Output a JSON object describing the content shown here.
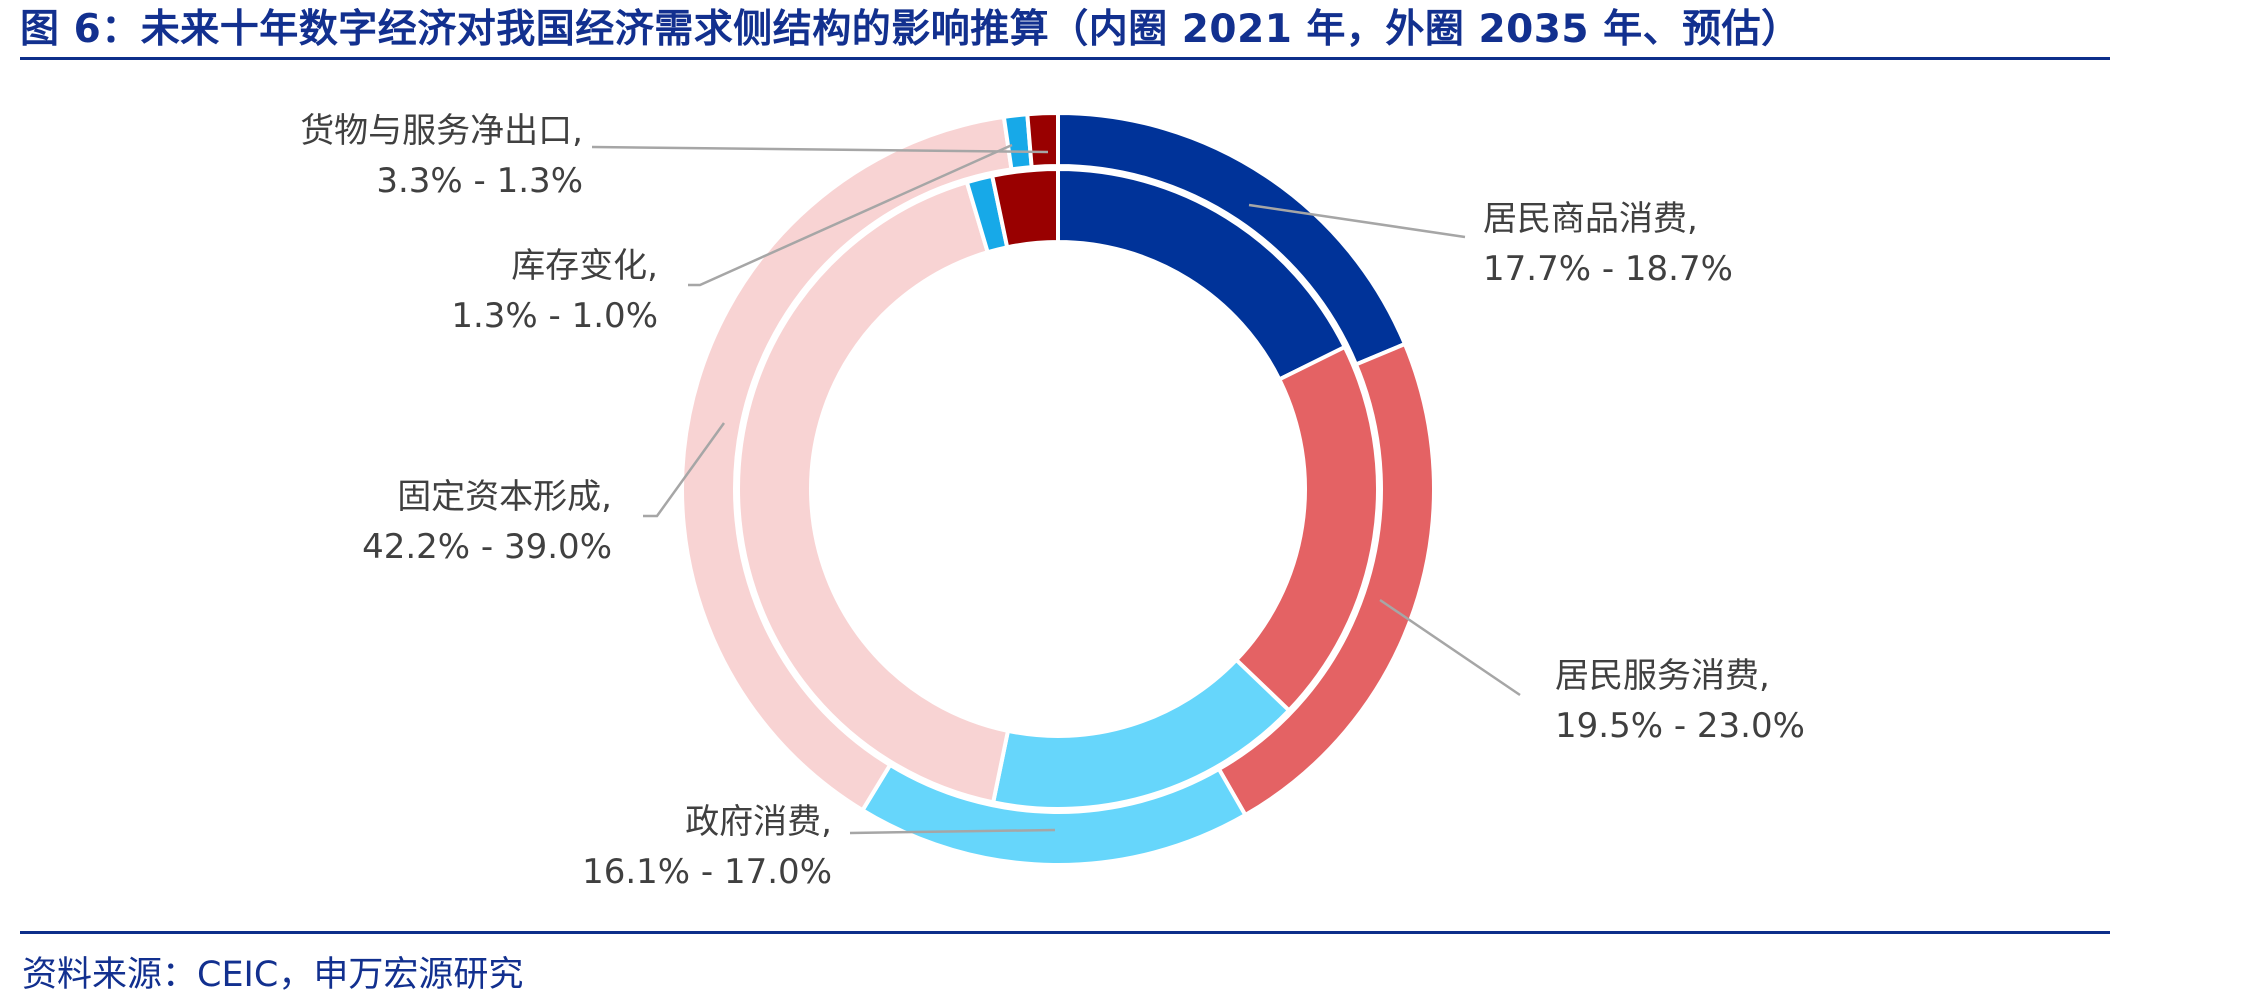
{
  "title": "图 6：未来十年数字经济对我国经济需求侧结构的影响推算（内圈 2021 年，外圈 2035 年、预估）",
  "source": "资料来源：CEIC，申万宏源研究",
  "colors": {
    "title_blue": "#12308f",
    "rule_blue": "#0d2f8a",
    "leader_line": "#a6a6a6",
    "label_text": "#404040"
  },
  "chart_data": {
    "type": "donut",
    "rings": [
      "2021",
      "2035"
    ],
    "categories": [
      {
        "name": "居民商品消费",
        "color": "#003399",
        "inner_2021": 17.7,
        "outer_2035": 18.7,
        "value_text": "17.7% - 18.7%"
      },
      {
        "name": "居民服务消费",
        "color": "#e46264",
        "inner_2021": 19.5,
        "outer_2035": 23.0,
        "value_text": "19.5% - 23.0%"
      },
      {
        "name": "政府消费",
        "color": "#66d6fb",
        "inner_2021": 16.1,
        "outer_2035": 17.0,
        "value_text": "16.1% -  17.0%"
      },
      {
        "name": "固定资本形成",
        "color": "#f8d3d3",
        "inner_2021": 42.2,
        "outer_2035": 39.0,
        "value_text": "42.2% -  39.0%"
      },
      {
        "name": "库存变化",
        "color": "#17a9e8",
        "inner_2021": 1.3,
        "outer_2035": 1.0,
        "value_text": "1.3% - 1.0%"
      },
      {
        "name": "货物与服务净出口",
        "color": "#990000",
        "inner_2021": 3.3,
        "outer_2035": 1.3,
        "value_text": "3.3% - 1.3%"
      }
    ],
    "labels": [
      {
        "line1": "居民商品消费,",
        "line2": "17.7% - 18.7%"
      },
      {
        "line1": "居民服务消费,",
        "line2": "19.5% - 23.0%"
      },
      {
        "line1": "政府消费,",
        "line2": "16.1% -  17.0%"
      },
      {
        "line1": "固定资本形成,",
        "line2": "42.2% -  39.0%"
      },
      {
        "line1": "库存变化,",
        "line2": "1.3% - 1.0%"
      },
      {
        "line1": "货物与服务净出口,",
        "line2": "3.3% - 1.3%"
      }
    ]
  }
}
